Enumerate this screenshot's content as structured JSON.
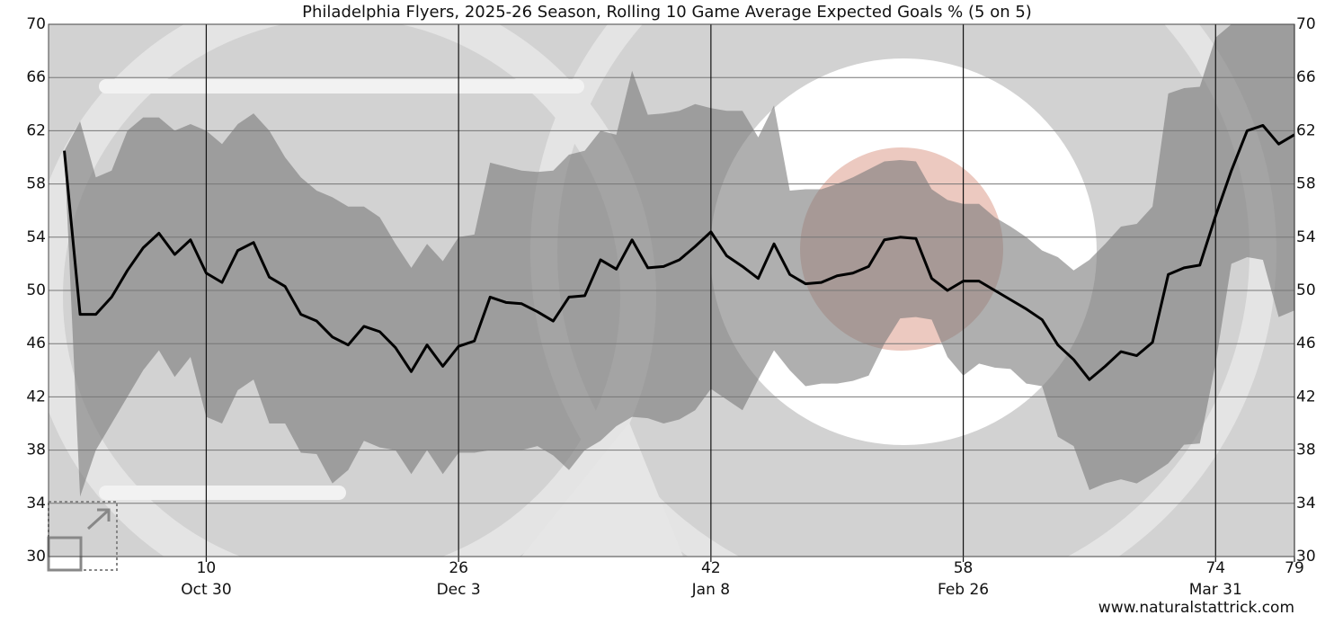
{
  "chart_data": {
    "type": "line",
    "title": "Philadelphia Flyers, 2025-26 Season, Rolling 10 Game Average Expected Goals % (5 on 5)",
    "source": "www.naturalstattrick.com",
    "x": [
      1,
      2,
      3,
      4,
      5,
      6,
      7,
      8,
      9,
      10,
      11,
      12,
      13,
      14,
      15,
      16,
      17,
      18,
      19,
      20,
      21,
      22,
      23,
      24,
      25,
      26,
      27,
      28,
      29,
      30,
      31,
      32,
      33,
      34,
      35,
      36,
      37,
      38,
      39,
      40,
      41,
      42,
      43,
      44,
      45,
      46,
      47,
      48,
      49,
      50,
      51,
      52,
      53,
      54,
      55,
      56,
      57,
      58,
      59,
      60,
      61,
      62,
      63,
      64,
      65,
      66,
      67,
      68,
      69,
      70,
      71,
      72,
      73,
      74,
      75,
      76,
      77,
      78,
      79
    ],
    "series": [
      {
        "color": "#000000",
        "values": [
          60.5,
          48.2,
          48.2,
          49.5,
          51.5,
          53.2,
          54.3,
          52.7,
          53.8,
          51.3,
          50.6,
          53,
          53.6,
          51,
          50.3,
          48.2,
          47.7,
          46.5,
          45.9,
          47.3,
          46.9,
          45.7,
          43.9,
          45.9,
          44.3,
          45.8,
          46.2,
          49.5,
          49.1,
          49,
          48.4,
          47.7,
          49.5,
          49.6,
          52.3,
          51.6,
          53.8,
          51.7,
          51.8,
          52.3,
          53.3,
          54.4,
          52.6,
          51.8,
          50.9,
          53.5,
          51.2,
          50.5,
          50.6,
          51.1,
          51.3,
          51.8,
          53.8,
          54,
          53.9,
          50.9,
          50,
          50.7,
          50.7,
          50,
          49.3,
          48.6,
          47.8,
          45.9,
          44.8,
          43.3,
          44.3,
          45.4,
          45.1,
          46.1,
          51.2,
          51.7,
          51.9,
          55.6,
          59,
          62,
          62.4,
          61,
          61.7
        ]
      }
    ],
    "band": {
      "color": "#7a7a7a",
      "upper": [
        60.5,
        62.7,
        58.5,
        59,
        62,
        63,
        63,
        62,
        62.5,
        62,
        61,
        62.5,
        63.3,
        62,
        60,
        58.5,
        57.5,
        57,
        56.3,
        56.3,
        55.5,
        53.5,
        51.7,
        53.5,
        52.2,
        54,
        54.2,
        59.6,
        59.3,
        59,
        58.9,
        59,
        60.2,
        60.5,
        62,
        61.7,
        66.5,
        63.2,
        63.3,
        63.5,
        64,
        63.7,
        63.5,
        63.5,
        61.5,
        63.9,
        57.5,
        57.6,
        57.6,
        58,
        58.5,
        59.1,
        59.7,
        59.8,
        59.7,
        57.6,
        56.8,
        56.5,
        56.5,
        55.5,
        54.8,
        54,
        53,
        52.5,
        51.5,
        52.3,
        53.5,
        54.8,
        55,
        56.3,
        64.8,
        65.2,
        65.3,
        69,
        70,
        70,
        70,
        70,
        70
      ],
      "lower": [
        60.5,
        34.5,
        38,
        40,
        42,
        44,
        45.5,
        43.5,
        45,
        40.5,
        40,
        42.5,
        43.3,
        40,
        40,
        37.8,
        37.7,
        35.5,
        36.5,
        38.7,
        38.2,
        38,
        36.2,
        38,
        36.2,
        37.8,
        37.8,
        38,
        38,
        38,
        38.3,
        37.6,
        36.5,
        38,
        38.7,
        39.8,
        40.5,
        40.4,
        40,
        40.3,
        41,
        42.6,
        41.8,
        41,
        43.3,
        45.5,
        44,
        42.8,
        43,
        43,
        43.2,
        43.6,
        46,
        47.9,
        48,
        47.8,
        45,
        43.6,
        44.5,
        44.2,
        44.1,
        43,
        42.8,
        39,
        38.3,
        35,
        35.5,
        35.8,
        35.5,
        36.2,
        37,
        38.4,
        38.5,
        44.5,
        52,
        52.5,
        52.3,
        48,
        48.5
      ]
    },
    "xlim": [
      0,
      79
    ],
    "xticks": [
      10,
      26,
      42,
      58,
      74,
      79
    ],
    "xtick_dates": [
      "Oct 30",
      "Dec 3",
      "Jan 8",
      "Feb 26",
      "Mar 31",
      null
    ],
    "ylim": [
      30,
      70
    ],
    "yticks": [
      30,
      34,
      38,
      42,
      46,
      50,
      54,
      58,
      62,
      66,
      70
    ],
    "grid": true
  }
}
